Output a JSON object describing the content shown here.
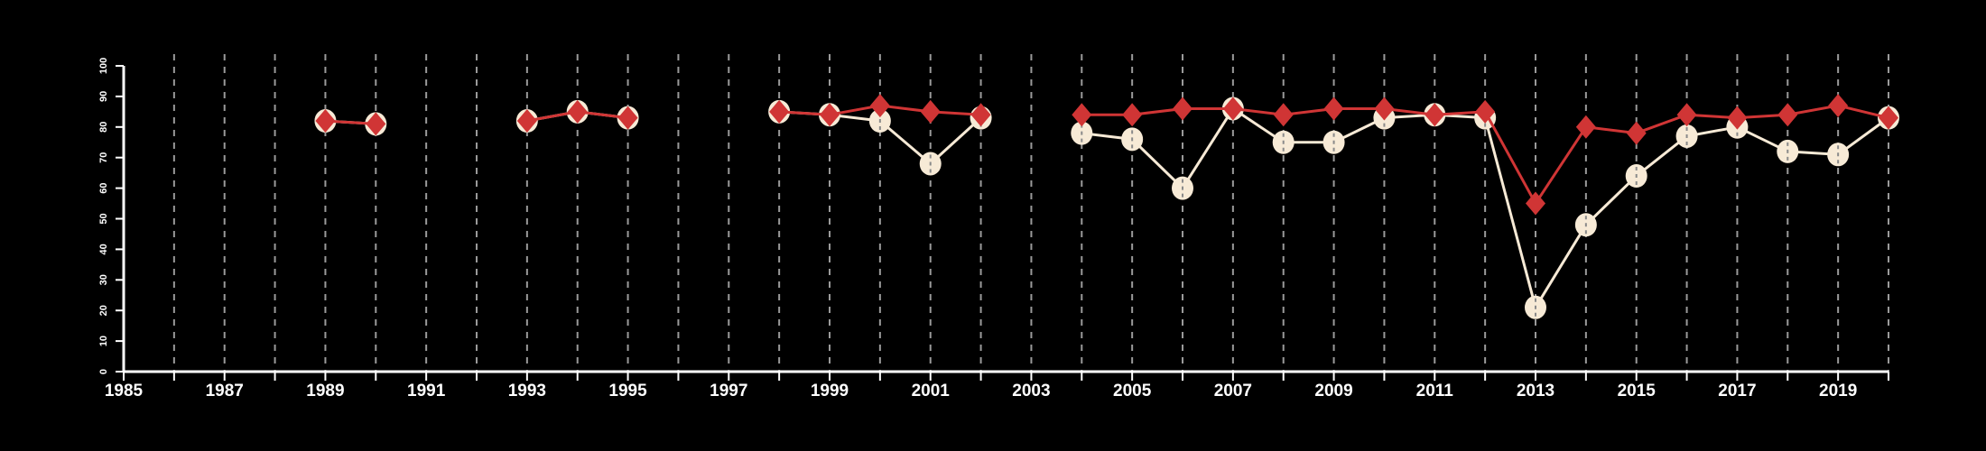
{
  "chart_data": {
    "type": "line",
    "title": "",
    "xlabel": "",
    "ylabel": "",
    "xlim": [
      1985,
      2020
    ],
    "ylim": [
      0,
      100
    ],
    "grid": "vertical dashed lines at each year",
    "x_tick_labels": [
      "1985",
      "1987",
      "1989",
      "1991",
      "1993",
      "1995",
      "1997",
      "1999",
      "2001",
      "2003",
      "2005",
      "2007",
      "2009",
      "2011",
      "2013",
      "2015",
      "2017",
      "2019"
    ],
    "y_tick_labels": [
      "0",
      "10",
      "20",
      "30",
      "40",
      "50",
      "60",
      "70",
      "80",
      "90",
      "100"
    ],
    "x": [
      1985,
      1986,
      1987,
      1988,
      1989,
      1990,
      1991,
      1992,
      1993,
      1994,
      1995,
      1996,
      1997,
      1998,
      1999,
      2000,
      2001,
      2002,
      2003,
      2004,
      2005,
      2006,
      2007,
      2008,
      2009,
      2010,
      2011,
      2012,
      2013,
      2014,
      2015,
      2016,
      2017,
      2018,
      2019,
      2020
    ],
    "series": [
      {
        "name": "cream circles",
        "color": "#f7ead6",
        "marker": "circle",
        "values": [
          null,
          null,
          null,
          null,
          82,
          81,
          null,
          null,
          82,
          85,
          83,
          null,
          null,
          85,
          84,
          82,
          68,
          83,
          null,
          78,
          76,
          60,
          86,
          75,
          75,
          83,
          84,
          83,
          21,
          48,
          64,
          77,
          80,
          72,
          71,
          83
        ]
      },
      {
        "name": "red diamonds",
        "color": "#d03535",
        "marker": "diamond",
        "values": [
          null,
          null,
          null,
          null,
          82,
          81,
          null,
          null,
          82,
          85,
          83,
          null,
          null,
          85,
          84,
          87,
          85,
          84,
          null,
          84,
          84,
          86,
          86,
          84,
          86,
          86,
          84,
          85,
          55,
          80,
          78,
          84,
          83,
          84,
          87,
          83
        ]
      }
    ]
  }
}
